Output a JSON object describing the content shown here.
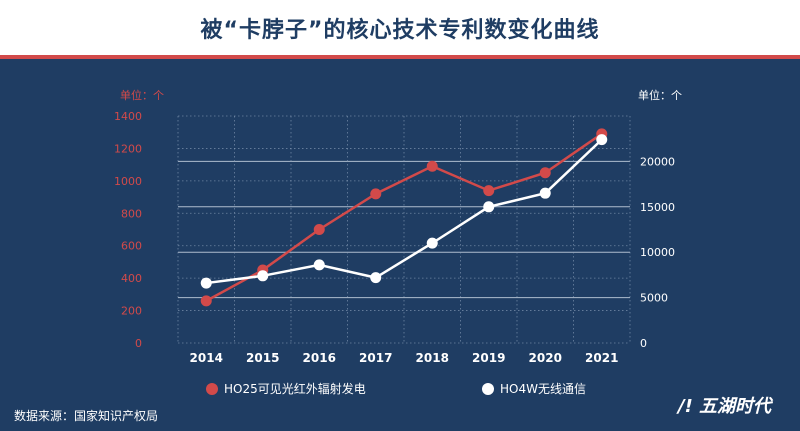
{
  "header": {
    "title": "被“卡脖子”的核心技术专利数变化曲线"
  },
  "footer": {
    "source": "数据来源：国家知识产权局"
  },
  "logo": {
    "text": "/! 五湖时代"
  },
  "colors": {
    "background": "#1f3d63",
    "series1": "#d24a4a",
    "series2": "#ffffff",
    "accent": "#d24a4a"
  },
  "chart_data": {
    "type": "line",
    "categories": [
      "2014",
      "2015",
      "2016",
      "2017",
      "2018",
      "2019",
      "2020",
      "2021"
    ],
    "left_axis": {
      "unit_label": "单位：个",
      "ylim": [
        0,
        1400
      ],
      "ticks": [
        0,
        200,
        400,
        600,
        800,
        1000,
        1200,
        1400
      ]
    },
    "right_axis": {
      "unit_label": "单位：个",
      "ylim": [
        0,
        25000
      ],
      "ticks": [
        0,
        5000,
        10000,
        15000,
        20000
      ]
    },
    "series": [
      {
        "name": "HO25可见光红外辐射发电",
        "axis": "left",
        "values": [
          260,
          450,
          700,
          920,
          1090,
          940,
          1050,
          1290
        ]
      },
      {
        "name": "HO4W无线通信",
        "axis": "right",
        "values": [
          6600,
          7400,
          8600,
          7200,
          11000,
          15000,
          16500,
          22400
        ]
      }
    ],
    "grid": true,
    "legend_position": "bottom"
  }
}
